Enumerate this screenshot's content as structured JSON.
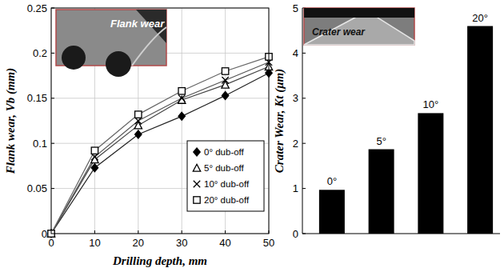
{
  "chart_data": [
    {
      "type": "line",
      "annotation": "Flank wear",
      "x_label": "Drilling depth, mm",
      "y_label": "Flank wear, Vb (mm)",
      "x": [
        0,
        10,
        20,
        30,
        40,
        50
      ],
      "series": [
        {
          "name": "0° dub-off",
          "color": "#222222",
          "marker": "diamond",
          "values": [
            0,
            0.073,
            0.11,
            0.13,
            0.153,
            0.178
          ]
        },
        {
          "name": "5° dub-off",
          "color": "#444444",
          "marker": "triangle",
          "values": [
            0,
            0.082,
            0.12,
            0.148,
            0.165,
            0.185
          ]
        },
        {
          "name": "10° dub-off",
          "color": "#555555",
          "marker": "x",
          "values": [
            0,
            0.085,
            0.125,
            0.15,
            0.17,
            0.19
          ]
        },
        {
          "name": "20° dub-off",
          "color": "#666666",
          "marker": "square",
          "values": [
            0,
            0.092,
            0.132,
            0.158,
            0.18,
            0.196
          ]
        }
      ],
      "xlim": [
        0,
        50
      ],
      "xticks": [
        0,
        10,
        20,
        30,
        40,
        50
      ],
      "ylim": [
        0,
        0.25
      ],
      "yticks": [
        0,
        0.05,
        0.1,
        0.15,
        0.2,
        0.25
      ],
      "grid": true,
      "legend": "lower right"
    },
    {
      "type": "bar",
      "annotation": "Crater wear",
      "y_label": "Crater Wear, Kt (μm)",
      "categories": [
        "0°",
        "5°",
        "10°",
        "20°"
      ],
      "values": [
        0.97,
        1.87,
        2.67,
        4.6
      ],
      "color": "#000000",
      "ylim": [
        0,
        5
      ],
      "yticks": [
        0,
        1,
        2,
        3,
        4,
        5
      ],
      "grid": false,
      "tick_labels": "y"
    }
  ]
}
